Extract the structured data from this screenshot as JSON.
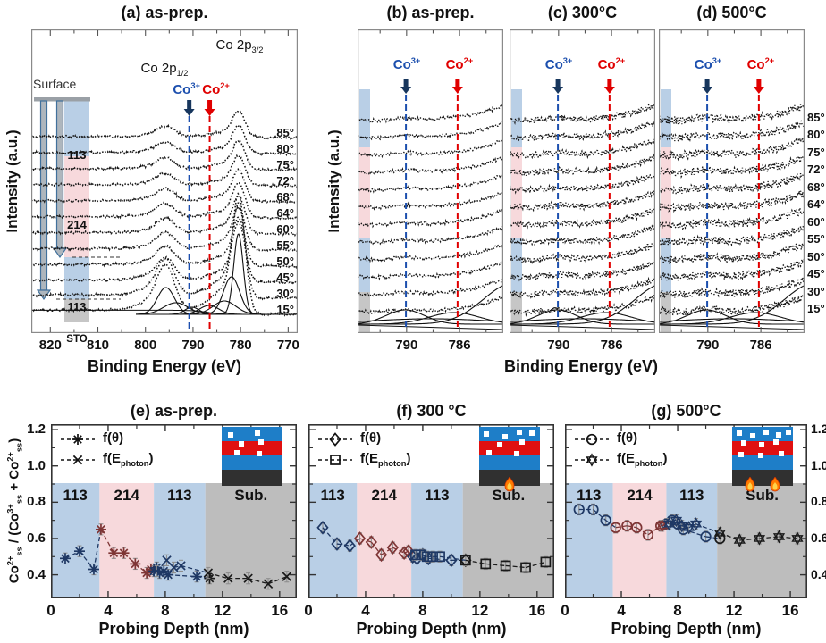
{
  "colors": {
    "band_blue": "#b9cfe6",
    "band_pink": "#f7d9dc",
    "band_gray": "#c6c6c6",
    "sub_gray": "#bdbdbd",
    "co3_blue": "#1c4fae",
    "co3_arrow": "#17365d",
    "co2_red": "#e00000",
    "series_navy": "#1f3864",
    "series_darkred": "#7e3535",
    "series_black": "#1a1a1a",
    "inset_blue": "#1e7ec8",
    "inset_red": "#e01010",
    "inset_dark": "#303030",
    "surface_arrow_fill": "#aeb6bd",
    "surface_arrow_stroke": "#41719c",
    "error_gray": "#8f8f8f"
  },
  "common": {
    "co3_label": [
      [
        "t",
        "Co"
      ],
      [
        "sup",
        "3+"
      ]
    ],
    "co2_label": [
      [
        "t",
        "Co"
      ],
      [
        "sup",
        "2+"
      ]
    ],
    "legend_labels": [
      [
        [
          "t",
          "f(θ)"
        ]
      ],
      [
        [
          "t",
          "f(E"
        ],
        [
          "sub",
          "photon"
        ],
        [
          "t",
          ")"
        ]
      ]
    ],
    "region_labels": [
      "113",
      "214",
      "113",
      "Sub."
    ],
    "angle_labels_bottom_up": [
      "15°",
      "30°",
      "45°",
      "50°",
      "55°",
      "60°",
      "64°",
      "68°",
      "72°",
      "75°",
      "80°",
      "85°"
    ]
  },
  "panels": {
    "a": {
      "title": "(a) as-prep.",
      "xlabel": "Binding Energy (eV)",
      "ylabel": "Intensity (a.u.)",
      "surface_label": "Surface",
      "layer_labels": [
        "113",
        "214",
        "113",
        "STO"
      ],
      "peak_label_1": [
        [
          "t",
          "Co 2p"
        ],
        [
          "sub",
          "1/2"
        ]
      ],
      "peak_label_2": [
        [
          "t",
          "Co 2p"
        ],
        [
          "sub",
          "3/2"
        ]
      ]
    },
    "b": {
      "title": "(b) as-prep.",
      "ylabel": "Intensity (a.u.)"
    },
    "c": {
      "title": "(c) 300°C"
    },
    "d": {
      "title": "(d) 500°C"
    },
    "bcd_xlabel": "Binding Energy (eV)",
    "e": {
      "title": "(e) as-prep.",
      "xlabel": "Probing Depth (nm)",
      "ylabel_segments": [
        [
          "t",
          "Co"
        ],
        [
          "sup",
          "2+"
        ],
        [
          "sub",
          "ss"
        ],
        [
          "t",
          " / (Co"
        ],
        [
          "sup",
          "3+"
        ],
        [
          "sub",
          "ss"
        ],
        [
          "t",
          " + Co"
        ],
        [
          "sup",
          "2+"
        ],
        [
          "sub",
          "ss"
        ],
        [
          "t",
          ")"
        ]
      ]
    },
    "f": {
      "title": "(f) 300 °C",
      "xlabel": "Probing Depth (nm)"
    },
    "g": {
      "title": "(g) 500°C",
      "xlabel": "Probing Depth (nm)"
    }
  },
  "chart_data": [
    {
      "panel": "a",
      "type": "line",
      "title": "(a) as-prep.",
      "xlabel": "Binding Energy (eV)",
      "ylabel": "Intensity (a.u.)",
      "x_axis": {
        "unit": "eV",
        "reversed": true,
        "range": [
          824,
          768
        ],
        "ticks": [
          820,
          810,
          800,
          790,
          780,
          770
        ]
      },
      "takeoff_angles_deg": [
        15,
        30,
        45,
        50,
        55,
        60,
        64,
        68,
        72,
        75,
        80,
        85
      ],
      "peaks_eV": {
        "Co 2p1/2": 795.7,
        "Co 2p3/2": 780.4
      },
      "reference_lines_eV": {
        "Co3+": 790.8,
        "Co2+": 786.5
      },
      "layers_surface_to_bulk": [
        "113",
        "214",
        "113",
        "STO"
      ]
    },
    {
      "panel": "b",
      "type": "line",
      "title": "(b) as-prep.",
      "ylabel": "Intensity (a.u.)",
      "x_axis": {
        "unit": "eV",
        "reversed": true,
        "range": [
          793.7,
          782.7
        ],
        "ticks": [
          790,
          786
        ]
      },
      "takeoff_angles_deg": [
        15,
        30,
        45,
        50,
        55,
        60,
        64,
        68,
        72,
        75,
        80,
        85
      ],
      "reference_lines_eV": {
        "Co3+": 790.05,
        "Co2+": 786.15
      },
      "noise_level": 1
    },
    {
      "panel": "c",
      "type": "line",
      "title": "(c) 300°C",
      "x_axis": {
        "unit": "eV",
        "reversed": true,
        "range": [
          793.7,
          782.7
        ],
        "ticks": [
          790,
          786
        ]
      },
      "takeoff_angles_deg": [
        15,
        30,
        45,
        50,
        55,
        60,
        64,
        68,
        72,
        75,
        80,
        85
      ],
      "reference_lines_eV": {
        "Co3+": 790.05,
        "Co2+": 786.15
      },
      "noise_level": 2
    },
    {
      "panel": "d",
      "type": "line",
      "title": "(d) 500°C",
      "x_axis": {
        "unit": "eV",
        "reversed": true,
        "range": [
          793.7,
          782.7
        ],
        "ticks": [
          790,
          786
        ]
      },
      "takeoff_angles_deg": [
        15,
        30,
        45,
        50,
        55,
        60,
        64,
        68,
        72,
        75,
        80,
        85
      ],
      "reference_lines_eV": {
        "Co3+": 790.05,
        "Co2+": 786.15
      },
      "noise_level": 3
    },
    {
      "panel": "e",
      "type": "scatter",
      "title": "(e) as-prep.",
      "xlabel": "Probing Depth (nm)",
      "ylabel": "Co2+ss / (Co3+ss + Co2+ss)",
      "x_axis": {
        "range": [
          0,
          17.2
        ],
        "ticks": [
          0,
          4,
          8,
          12,
          16
        ],
        "minor_ticks": [
          2,
          6,
          10,
          14
        ]
      },
      "y_axis": {
        "range": [
          0.27,
          1.23
        ],
        "ticks": [
          1.2,
          1.0,
          0.8,
          0.6,
          0.4
        ]
      },
      "error_bar": 0.03,
      "regions": [
        {
          "label": "113",
          "from_nm": 0,
          "to_nm": 3.4
        },
        {
          "label": "214",
          "from_nm": 3.4,
          "to_nm": 7.2
        },
        {
          "label": "113",
          "from_nm": 7.2,
          "to_nm": 10.8
        },
        {
          "label": "Sub.",
          "from_nm": 10.8,
          "to_nm": 17.2
        }
      ],
      "series": [
        {
          "name": "f(θ)",
          "marker": "asterisk",
          "x": [
            1.0,
            2.0,
            3.0,
            3.5,
            4.4,
            5.1,
            5.9,
            6.7,
            7.0,
            7.2,
            7.4,
            7.6,
            7.9,
            8.2,
            10.2,
            11.1
          ],
          "y": [
            0.49,
            0.53,
            0.43,
            0.65,
            0.52,
            0.52,
            0.46,
            0.41,
            0.43,
            0.42,
            0.44,
            0.41,
            0.42,
            0.4,
            0.39,
            0.38
          ]
        },
        {
          "name": "f(Ephoton)",
          "marker": "cross",
          "x": [
            7.4,
            8.1,
            8.6,
            9.1,
            11.0,
            12.4,
            13.8,
            15.2,
            16.5
          ],
          "y": [
            0.42,
            0.48,
            0.44,
            0.45,
            0.41,
            0.38,
            0.38,
            0.35,
            0.39
          ]
        }
      ],
      "inset": {
        "flame_count": 0,
        "defect_positions": [
          [
            10,
            12
          ],
          [
            55,
            8
          ],
          [
            28,
            33
          ],
          [
            60,
            30
          ],
          [
            20,
            55
          ],
          [
            58,
            56
          ]
        ]
      }
    },
    {
      "panel": "f",
      "type": "scatter",
      "title": "(f) 300 °C",
      "xlabel": "Probing Depth (nm)",
      "ylabel": "Co2+ss / (Co3+ss + Co2+ss)",
      "x_axis": {
        "range": [
          0,
          17.2
        ],
        "ticks": [
          0,
          4,
          8,
          12,
          16
        ],
        "minor_ticks": [
          2,
          6,
          10,
          14
        ]
      },
      "y_axis": {
        "range": [
          0.27,
          1.23
        ],
        "ticks": [
          1.2,
          1.0,
          0.8,
          0.6,
          0.4
        ]
      },
      "error_bar": 0.03,
      "regions": [
        {
          "label": "113",
          "from_nm": 0,
          "to_nm": 3.4
        },
        {
          "label": "214",
          "from_nm": 3.4,
          "to_nm": 7.2
        },
        {
          "label": "113",
          "from_nm": 7.2,
          "to_nm": 10.8
        },
        {
          "label": "Sub.",
          "from_nm": 10.8,
          "to_nm": 17.2
        }
      ],
      "series": [
        {
          "name": "f(θ)",
          "marker": "diamond",
          "x": [
            1.0,
            2.0,
            2.9,
            3.6,
            4.4,
            5.1,
            5.9,
            6.7,
            7.0,
            7.3,
            7.6,
            8.0,
            8.4,
            10.0,
            11.0
          ],
          "y": [
            0.66,
            0.57,
            0.56,
            0.6,
            0.58,
            0.51,
            0.55,
            0.52,
            0.53,
            0.5,
            0.49,
            0.51,
            0.49,
            0.48,
            0.48
          ]
        },
        {
          "name": "f(Ephoton)",
          "marker": "square",
          "x": [
            7.5,
            7.9,
            8.3,
            8.7,
            9.2,
            11.0,
            12.4,
            13.8,
            15.2,
            16.6
          ],
          "y": [
            0.51,
            0.51,
            0.5,
            0.5,
            0.5,
            0.48,
            0.46,
            0.45,
            0.44,
            0.47
          ]
        }
      ],
      "inset": {
        "flame_count": 1,
        "defect_positions": [
          [
            8,
            10
          ],
          [
            38,
            16
          ],
          [
            62,
            6
          ],
          [
            82,
            8
          ],
          [
            30,
            35
          ],
          [
            66,
            30
          ],
          [
            12,
            55
          ],
          [
            58,
            57
          ]
        ]
      }
    },
    {
      "panel": "g",
      "type": "scatter",
      "title": "(g) 500°C",
      "xlabel": "Probing Depth (nm)",
      "ylabel": "Co2+ss / (Co3+ss + Co2+ss)",
      "x_axis": {
        "range": [
          0,
          17.2
        ],
        "ticks": [
          0,
          4,
          8,
          12,
          16
        ],
        "minor_ticks": [
          2,
          6,
          10,
          14
        ]
      },
      "y_axis": {
        "range": [
          0.27,
          1.23
        ],
        "ticks": [
          1.2,
          1.0,
          0.8,
          0.6,
          0.4
        ]
      },
      "error_bar": 0.03,
      "regions": [
        {
          "label": "113",
          "from_nm": 0,
          "to_nm": 3.4
        },
        {
          "label": "214",
          "from_nm": 3.4,
          "to_nm": 7.2
        },
        {
          "label": "113",
          "from_nm": 7.2,
          "to_nm": 10.8
        },
        {
          "label": "Sub.",
          "from_nm": 10.8,
          "to_nm": 17.2
        }
      ],
      "series": [
        {
          "name": "f(θ)",
          "marker": "circle",
          "x": [
            1.0,
            2.0,
            2.9,
            3.6,
            4.4,
            5.1,
            5.9,
            6.8,
            7.2,
            7.6,
            8.0,
            8.4,
            10.0,
            11.0
          ],
          "y": [
            0.76,
            0.76,
            0.7,
            0.66,
            0.67,
            0.66,
            0.62,
            0.67,
            0.68,
            0.7,
            0.68,
            0.65,
            0.61,
            0.6
          ]
        },
        {
          "name": "f(Ephoton)",
          "marker": "hexagram",
          "x": [
            6.9,
            7.4,
            7.9,
            8.3,
            8.8,
            9.3,
            11.0,
            12.4,
            13.8,
            15.2,
            16.5
          ],
          "y": [
            0.67,
            0.68,
            0.7,
            0.67,
            0.66,
            0.68,
            0.63,
            0.59,
            0.6,
            0.61,
            0.6
          ]
        }
      ],
      "inset": {
        "flame_count": 2,
        "defect_positions": [
          [
            8,
            8
          ],
          [
            30,
            14
          ],
          [
            52,
            6
          ],
          [
            72,
            12
          ],
          [
            88,
            6
          ],
          [
            14,
            32
          ],
          [
            44,
            36
          ],
          [
            68,
            30
          ],
          [
            10,
            58
          ],
          [
            42,
            60
          ],
          [
            76,
            56
          ]
        ]
      }
    }
  ]
}
